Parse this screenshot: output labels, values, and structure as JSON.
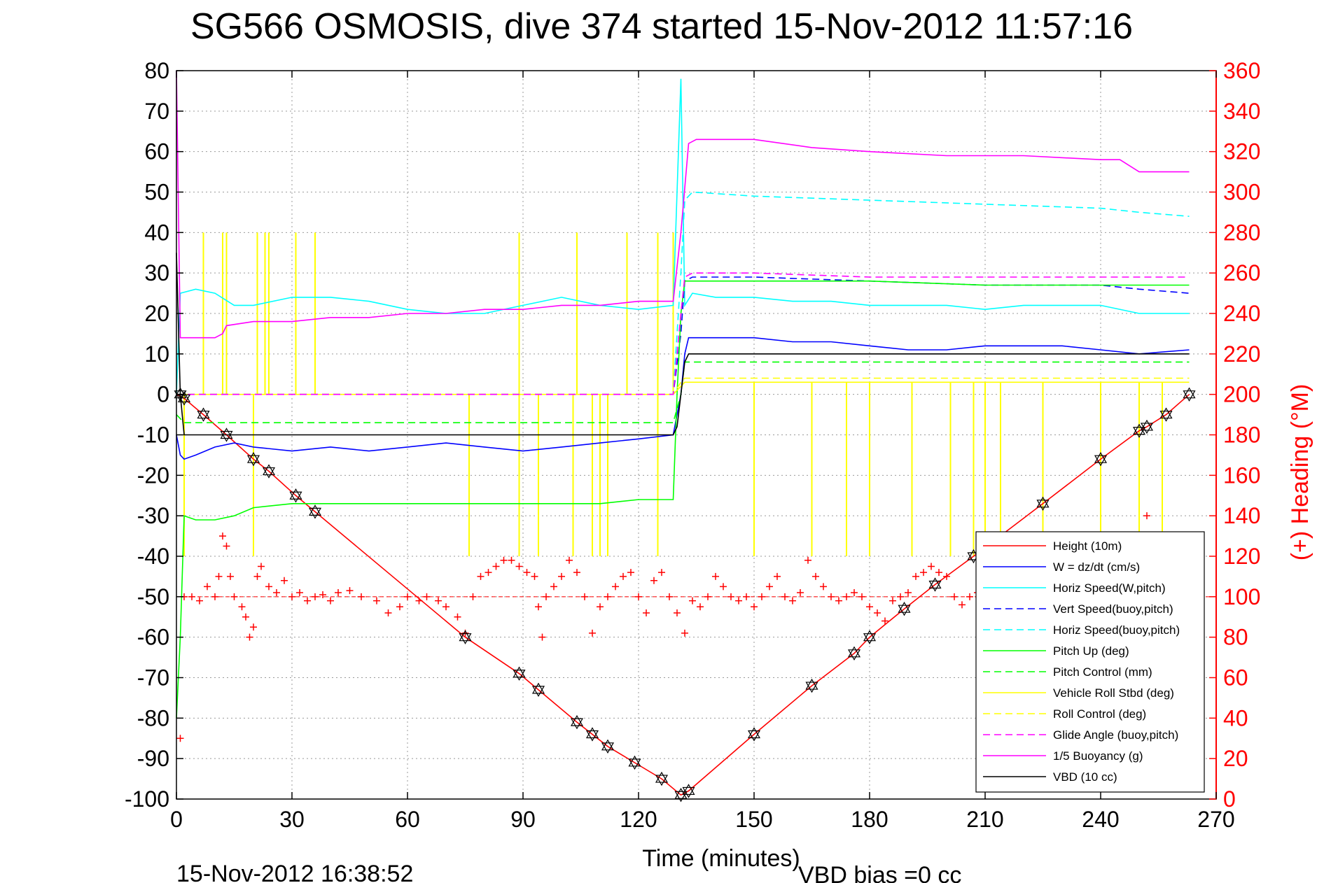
{
  "chart_data": {
    "type": "line",
    "title": "SG566 OSMOSIS, dive 374 started 15-Nov-2012 11:57:16",
    "xlabel": "Time (minutes)",
    "ylabel_right": "(+) Heading (°M)",
    "xlim": [
      0,
      270
    ],
    "ylim": [
      -100,
      80
    ],
    "ylim_right": [
      0,
      360
    ],
    "x_ticks": [
      "0",
      "30",
      "60",
      "90",
      "120",
      "150",
      "180",
      "210",
      "240",
      "270"
    ],
    "y_ticks_left": [
      "80",
      "70",
      "60",
      "50",
      "40",
      "30",
      "20",
      "10",
      "0",
      "-10",
      "-20",
      "-30",
      "-40",
      "-50",
      "-60",
      "-70",
      "-80",
      "-90",
      "-100"
    ],
    "y_ticks_right": [
      "360",
      "340",
      "320",
      "300",
      "280",
      "260",
      "240",
      "220",
      "200",
      "180",
      "160",
      "140",
      "120",
      "100",
      "80",
      "60",
      "40",
      "20",
      "0"
    ],
    "grid": true,
    "legend_position": "bottom-right",
    "footer_left": "15-Nov-2012 16:38:52",
    "footer_right": "VBD bias =0 cc",
    "series": [
      {
        "name": "Height (10m)",
        "color": "#ff0000",
        "style": "solid",
        "x": [
          0,
          2,
          7,
          13,
          20,
          24,
          31,
          36,
          75,
          89,
          94,
          104,
          108,
          112,
          119,
          126,
          131,
          133,
          150,
          165,
          176,
          180,
          189,
          197,
          207,
          225,
          240,
          250,
          252,
          257,
          263
        ],
        "y": [
          0,
          -1,
          -5,
          -10,
          -16,
          -19,
          -25,
          -29,
          -60,
          -69,
          -73,
          -81,
          -84,
          -87,
          -91,
          -95,
          -99,
          -98,
          -84,
          -72,
          -64,
          -60,
          -53,
          -47,
          -40,
          -27,
          -16,
          -9,
          -8,
          -5,
          0
        ]
      },
      {
        "name": "W = dz/dt (cm/s)",
        "color": "#0000ff",
        "style": "solid",
        "x": [
          0,
          1,
          2,
          5,
          10,
          15,
          20,
          30,
          40,
          50,
          60,
          70,
          80,
          90,
          100,
          110,
          120,
          129,
          131,
          132,
          133,
          140,
          150,
          160,
          170,
          180,
          190,
          200,
          210,
          220,
          230,
          240,
          250,
          263
        ],
        "y": [
          -10,
          -15,
          -16,
          -15,
          -13,
          -12,
          -13,
          -14,
          -13,
          -14,
          -13,
          -12,
          -13,
          -14,
          -13,
          -12,
          -11,
          -10,
          0,
          10,
          14,
          14,
          14,
          13,
          13,
          12,
          11,
          11,
          12,
          12,
          12,
          11,
          10,
          11
        ]
      },
      {
        "name": "Horiz Speed(W,pitch)",
        "color": "#00ffff",
        "style": "solid",
        "x": [
          0,
          1,
          5,
          10,
          15,
          20,
          30,
          40,
          50,
          60,
          70,
          80,
          90,
          100,
          110,
          120,
          129,
          131,
          132,
          134,
          140,
          150,
          160,
          170,
          180,
          190,
          200,
          210,
          220,
          230,
          240,
          250,
          263
        ],
        "y": [
          0,
          25,
          26,
          25,
          22,
          22,
          24,
          24,
          23,
          21,
          20,
          20,
          22,
          24,
          22,
          21,
          22,
          78,
          22,
          25,
          24,
          24,
          23,
          23,
          22,
          22,
          22,
          21,
          22,
          22,
          22,
          20,
          20
        ]
      },
      {
        "name": "Vert Speed(buoy,pitch)",
        "color": "#0000ff",
        "style": "dashed",
        "x": [
          0,
          30,
          60,
          90,
          120,
          129,
          131,
          132,
          134,
          150,
          180,
          210,
          240,
          250,
          263
        ],
        "y": [
          0,
          0,
          0,
          0,
          0,
          0,
          15,
          28,
          29,
          29,
          28,
          27,
          27,
          26,
          25
        ]
      },
      {
        "name": "Horiz Speed(buoy,pitch)",
        "color": "#00ffff",
        "style": "dashed",
        "x": [
          0,
          30,
          60,
          90,
          120,
          129,
          131,
          132,
          134,
          150,
          180,
          210,
          240,
          250,
          263
        ],
        "y": [
          0,
          0,
          0,
          0,
          0,
          0,
          30,
          48,
          50,
          49,
          48,
          47,
          46,
          45,
          44
        ]
      },
      {
        "name": "Pitch Up (deg)",
        "color": "#00ff00",
        "style": "solid",
        "x": [
          0,
          1,
          2,
          5,
          10,
          15,
          20,
          30,
          40,
          50,
          60,
          70,
          80,
          90,
          100,
          110,
          120,
          129,
          130,
          131,
          132,
          134,
          150,
          180,
          210,
          240,
          250,
          263
        ],
        "y": [
          -80,
          -60,
          -30,
          -31,
          -31,
          -30,
          -28,
          -27,
          -27,
          -27,
          -27,
          -27,
          -27,
          -27,
          -27,
          -27,
          -26,
          -26,
          0,
          20,
          28,
          28,
          28,
          28,
          27,
          27,
          27,
          27
        ]
      },
      {
        "name": "Pitch Control (mm)",
        "color": "#00ff00",
        "style": "dashed",
        "x": [
          0,
          2,
          30,
          60,
          90,
          120,
          129,
          131,
          132,
          134,
          150,
          180,
          210,
          240,
          263
        ],
        "y": [
          -5,
          -7,
          -7,
          -7,
          -7,
          -7,
          -7,
          0,
          8,
          8,
          8,
          8,
          8,
          8,
          8
        ]
      },
      {
        "name": "Vehicle Roll Stbd (deg)",
        "color": "#ffff00",
        "style": "solid",
        "x": [
          0,
          30,
          60,
          90,
          120,
          129,
          131,
          132,
          134,
          150,
          180,
          210,
          240,
          263
        ],
        "y": [
          0,
          0,
          0,
          0,
          0,
          0,
          2,
          3,
          3,
          3,
          3,
          3,
          3,
          3
        ]
      },
      {
        "name": "Roll Control (deg)",
        "color": "#ffff00",
        "style": "dashed",
        "x": [
          0,
          30,
          60,
          90,
          120,
          129,
          131,
          132,
          134,
          150,
          180,
          210,
          240,
          263
        ],
        "y": [
          0,
          0,
          0,
          0,
          0,
          0,
          3,
          4,
          4,
          4,
          4,
          4,
          4,
          4
        ]
      },
      {
        "name": "Glide Angle (buoy,pitch)",
        "color": "#ff00ff",
        "style": "dashed",
        "x": [
          0,
          30,
          60,
          90,
          120,
          129,
          131,
          132,
          134,
          150,
          180,
          210,
          240,
          250,
          263
        ],
        "y": [
          0,
          0,
          0,
          0,
          0,
          0,
          20,
          29,
          30,
          30,
          29,
          29,
          29,
          29,
          29
        ]
      },
      {
        "name": "1/5 Buoyancy (g)",
        "color": "#ff00ff",
        "style": "solid",
        "x": [
          0,
          1,
          2,
          10,
          12,
          13,
          20,
          30,
          40,
          50,
          60,
          70,
          80,
          90,
          100,
          110,
          120,
          129,
          131,
          133,
          135,
          150,
          165,
          180,
          200,
          220,
          240,
          245,
          250,
          263
        ],
        "y": [
          80,
          14,
          14,
          14,
          15,
          17,
          18,
          18,
          19,
          19,
          20,
          20,
          21,
          21,
          22,
          22,
          23,
          23,
          40,
          62,
          63,
          63,
          61,
          60,
          59,
          59,
          58,
          58,
          55,
          55
        ]
      },
      {
        "name": "VBD (10 cc)",
        "color": "#000000",
        "style": "solid",
        "x": [
          0,
          1,
          2,
          30,
          60,
          90,
          120,
          129,
          130,
          131,
          132,
          133,
          150,
          180,
          210,
          240,
          263
        ],
        "y": [
          35,
          0,
          -10,
          -10,
          -10,
          -10,
          -10,
          -10,
          -8,
          0,
          8,
          10,
          10,
          10,
          10,
          10,
          10
        ]
      }
    ],
    "heading_series": {
      "name": "(+) Heading (°M)",
      "color": "#ff0000",
      "marker": "+",
      "reference_line": 100,
      "x": [
        1,
        2,
        4,
        6,
        8,
        10,
        11,
        12,
        13,
        14,
        15,
        17,
        18,
        19,
        20,
        21,
        22,
        24,
        26,
        28,
        30,
        32,
        34,
        36,
        38,
        40,
        42,
        45,
        48,
        52,
        55,
        58,
        60,
        63,
        65,
        68,
        70,
        73,
        75,
        77,
        79,
        81,
        83,
        85,
        87,
        89,
        91,
        93,
        94,
        95,
        96,
        98,
        100,
        102,
        104,
        106,
        108,
        110,
        112,
        114,
        116,
        118,
        120,
        122,
        124,
        126,
        128,
        130,
        132,
        134,
        136,
        138,
        140,
        142,
        144,
        146,
        148,
        150,
        152,
        154,
        156,
        158,
        160,
        162,
        164,
        166,
        168,
        170,
        172,
        174,
        176,
        178,
        180,
        182,
        184,
        186,
        188,
        190,
        192,
        194,
        196,
        198,
        200,
        202,
        204,
        206,
        208,
        210,
        212,
        214,
        216,
        218,
        220,
        222,
        224,
        226,
        228,
        230,
        232,
        234,
        236,
        238,
        240,
        242,
        244,
        246,
        248,
        250,
        252,
        254,
        256,
        258,
        260,
        262,
        263
      ],
      "y": [
        30,
        100,
        100,
        98,
        105,
        100,
        110,
        130,
        125,
        110,
        100,
        95,
        90,
        80,
        85,
        110,
        115,
        105,
        102,
        108,
        100,
        102,
        98,
        100,
        101,
        98,
        102,
        103,
        100,
        98,
        92,
        95,
        100,
        98,
        100,
        98,
        95,
        90,
        82,
        100,
        110,
        112,
        115,
        118,
        118,
        115,
        112,
        110,
        95,
        80,
        100,
        105,
        110,
        118,
        112,
        100,
        82,
        95,
        100,
        105,
        110,
        112,
        100,
        92,
        108,
        112,
        100,
        92,
        82,
        98,
        95,
        100,
        110,
        105,
        100,
        98,
        100,
        95,
        100,
        105,
        110,
        100,
        98,
        102,
        118,
        110,
        105,
        100,
        98,
        100,
        102,
        100,
        95,
        92,
        88,
        98,
        100,
        102,
        110,
        112,
        115,
        112,
        110,
        100,
        96,
        100,
        102,
        98,
        92,
        96,
        100,
        104,
        108,
        110,
        112,
        110,
        104,
        102,
        100,
        98,
        102,
        104,
        110,
        112,
        116,
        118,
        114,
        110,
        140,
        125,
        115,
        110,
        105,
        100,
        100
      ]
    },
    "height_markers": {
      "x": [
        1,
        2,
        7,
        13,
        20,
        24,
        31,
        36,
        75,
        89,
        94,
        104,
        108,
        112,
        119,
        126,
        131,
        133,
        150,
        165,
        176,
        180,
        189,
        197,
        207,
        225,
        240,
        250,
        252,
        257,
        263
      ],
      "y": [
        0,
        -1,
        -5,
        -10,
        -16,
        -19,
        -25,
        -29,
        -60,
        -69,
        -73,
        -81,
        -84,
        -87,
        -91,
        -95,
        -99,
        -98,
        -84,
        -72,
        -64,
        -60,
        -53,
        -47,
        -40,
        -27,
        -16,
        -9,
        -8,
        -5,
        0
      ]
    },
    "roll_spikes": {
      "x_up": [
        7,
        12,
        13,
        21,
        23,
        24,
        31,
        36,
        89,
        104,
        117,
        125,
        129
      ],
      "x_down": [
        2,
        20,
        76,
        89,
        94,
        103,
        108,
        110,
        112,
        125,
        150,
        165,
        174,
        180,
        191,
        201,
        207,
        210,
        214,
        225,
        240,
        250,
        256
      ]
    }
  }
}
